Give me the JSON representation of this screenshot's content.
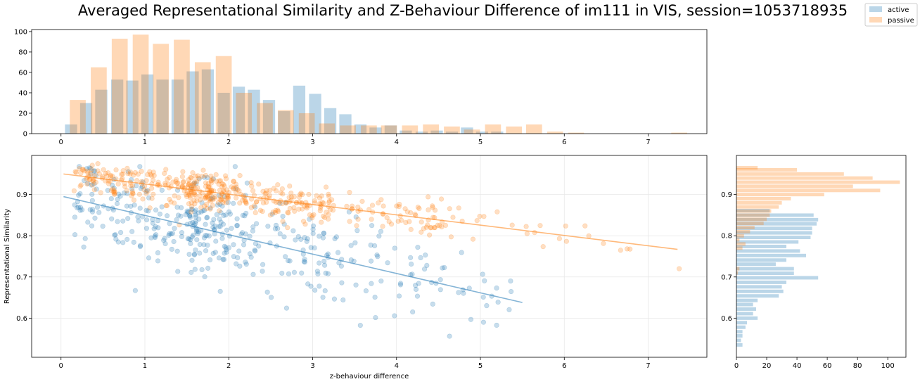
{
  "title": "Averaged Representational Similarity and Z-Behaviour Difference of im111 in VIS, session=1053718935",
  "colors": {
    "active": "#1f77b4",
    "passive": "#ff7f0e"
  },
  "chart_data": [
    {
      "type": "bar",
      "panel": "top-histogram",
      "xlim": [
        -0.35,
        7.7
      ],
      "ylim": [
        0,
        102
      ],
      "xticks": [
        "0",
        "1",
        "2",
        "3",
        "4",
        "5",
        "6",
        "7"
      ],
      "yticks": [
        "0",
        "20",
        "40",
        "60",
        "80",
        "100"
      ],
      "grid": false,
      "series": [
        {
          "name": "active",
          "bar_width": 0.145,
          "x": [
            0.12,
            0.3,
            0.48,
            0.67,
            0.85,
            1.03,
            1.21,
            1.39,
            1.57,
            1.75,
            1.94,
            2.12,
            2.3,
            2.48,
            2.66,
            2.84,
            3.03,
            3.21,
            3.39,
            3.57,
            3.75,
            3.93,
            4.11,
            4.3,
            4.48,
            4.66,
            4.84,
            5.02,
            5.2
          ],
          "values": [
            9,
            30,
            43,
            53,
            52,
            58,
            53,
            53,
            61,
            63,
            40,
            46,
            43,
            33,
            22,
            47,
            39,
            25,
            19,
            9,
            6,
            8,
            3,
            2,
            3,
            2,
            6,
            2,
            2
          ]
        },
        {
          "name": "passive",
          "bar_width": 0.19,
          "x": [
            0.2,
            0.45,
            0.7,
            0.95,
            1.19,
            1.44,
            1.69,
            1.94,
            2.18,
            2.43,
            2.68,
            2.93,
            3.17,
            3.42,
            3.67,
            3.91,
            4.16,
            4.41,
            4.66,
            4.9,
            5.15,
            5.4,
            5.64,
            5.89,
            6.14,
            7.37
          ],
          "values": [
            33,
            65,
            93,
            97,
            88,
            92,
            70,
            76,
            40,
            30,
            23,
            20,
            10,
            8,
            8,
            8,
            8,
            9,
            7,
            4,
            9,
            7,
            9,
            2,
            1,
            1
          ]
        }
      ]
    },
    {
      "type": "scatter",
      "panel": "main-scatter",
      "xlabel": "z-behaviour difference",
      "ylabel": "Representational Similarity",
      "xlim": [
        -0.35,
        7.7
      ],
      "ylim": [
        0.505,
        0.995
      ],
      "xticks": [
        "0",
        "1",
        "2",
        "3",
        "4",
        "5",
        "6",
        "7"
      ],
      "yticks": [
        "0.6",
        "0.7",
        "0.8",
        "0.9"
      ],
      "grid": true,
      "series": [
        {
          "name": "active",
          "regression": [
            [
              0.03,
              0.895
            ],
            [
              5.5,
              0.638
            ]
          ]
        },
        {
          "name": "passive",
          "regression": [
            [
              0.03,
              0.95
            ],
            [
              7.35,
              0.767
            ]
          ]
        }
      ]
    },
    {
      "type": "bar",
      "orientation": "horizontal",
      "panel": "right-histogram",
      "xlim": [
        0,
        112
      ],
      "xticks": [
        "0",
        "20",
        "40",
        "60",
        "80",
        "100"
      ],
      "series": [
        {
          "name": "active",
          "bar_height": 0.0085,
          "y": [
            0.535,
            0.546,
            0.557,
            0.567,
            0.578,
            0.589,
            0.6,
            0.611,
            0.622,
            0.633,
            0.643,
            0.654,
            0.665,
            0.676,
            0.687,
            0.698,
            0.709,
            0.72,
            0.731,
            0.741,
            0.752,
            0.763,
            0.774,
            0.785,
            0.796,
            0.807,
            0.818,
            0.829,
            0.839,
            0.85,
            0.861,
            0.872,
            0.883,
            0.894,
            0.905,
            0.916,
            0.927,
            0.938,
            0.949,
            0.96
          ],
          "values": [
            4,
            3,
            4,
            4,
            6,
            7,
            14,
            11,
            13,
            11,
            14,
            28,
            31,
            30,
            33,
            54,
            38,
            38,
            26,
            33,
            46,
            42,
            33,
            41,
            49,
            50,
            50,
            53,
            54,
            51,
            22,
            0,
            0,
            0,
            0,
            0,
            0,
            0,
            0,
            0
          ]
        },
        {
          "name": "passive",
          "bar_height": 0.0085,
          "y": [
            0.71,
            0.72,
            0.77,
            0.78,
            0.79,
            0.8,
            0.81,
            0.82,
            0.83,
            0.84,
            0.85,
            0.86,
            0.87,
            0.88,
            0.89,
            0.9,
            0.91,
            0.92,
            0.93,
            0.94,
            0.95,
            0.96,
            0.965
          ],
          "values": [
            1,
            2,
            4,
            6,
            2,
            5,
            9,
            12,
            18,
            20,
            22,
            23,
            28,
            30,
            36,
            58,
            95,
            77,
            108,
            90,
            71,
            40,
            14
          ]
        }
      ]
    }
  ],
  "legend": {
    "placement": "top-right",
    "entries": [
      "active",
      "passive"
    ]
  }
}
